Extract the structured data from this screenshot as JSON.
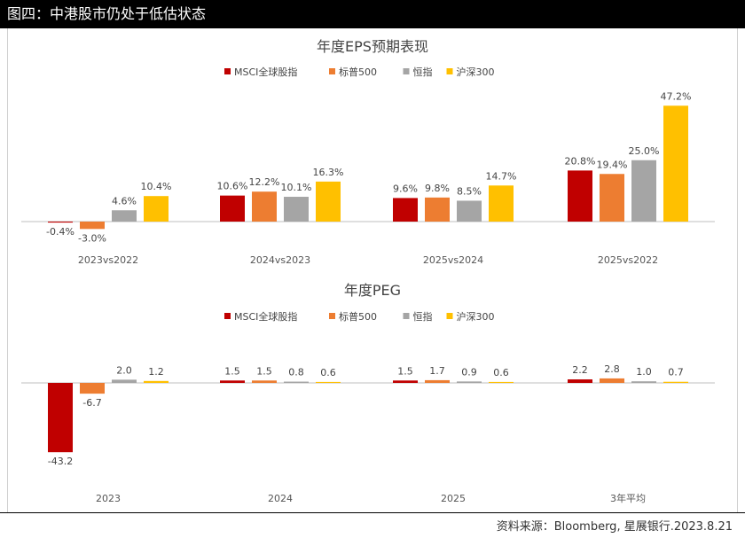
{
  "header": {
    "title": "图四：中港股市仍处于低估状态"
  },
  "source": "资料来源：Bloomberg, 星展银行.2023.8.21",
  "colors": {
    "MSCI全球股指": "#c00000",
    "标普500": "#ed7d31",
    "恒指": "#a5a5a5",
    "沪深300": "#ffc000"
  },
  "chart_data": [
    {
      "type": "bar",
      "title": "年度EPS预期表现",
      "categories": [
        "2023vs2022",
        "2024vs2023",
        "2025vs2024",
        "2025vs2022"
      ],
      "unit": "%",
      "legend_position": "top",
      "series": [
        {
          "name": "MSCI全球股指",
          "color": "#c00000",
          "values": [
            -0.4,
            10.6,
            9.6,
            20.8
          ],
          "labels": [
            "-0.4%",
            "10.6%",
            "9.6%",
            "20.8%"
          ]
        },
        {
          "name": "标普500",
          "color": "#ed7d31",
          "values": [
            -3.0,
            12.2,
            9.8,
            19.4
          ],
          "labels": [
            "-3.0%",
            "12.2%",
            "9.8%",
            "19.4%"
          ]
        },
        {
          "name": "恒指",
          "color": "#a5a5a5",
          "values": [
            4.6,
            10.1,
            8.5,
            25.0
          ],
          "labels": [
            "4.6%",
            "10.1%",
            "8.5%",
            "25.0%"
          ]
        },
        {
          "name": "沪深300",
          "color": "#ffc000",
          "values": [
            10.4,
            16.3,
            14.7,
            47.2
          ],
          "labels": [
            "10.4%",
            "16.3%",
            "14.7%",
            "47.2%"
          ]
        }
      ]
    },
    {
      "type": "bar",
      "title": "年度PEG",
      "categories": [
        "2023",
        "2024",
        "2025",
        "3年平均"
      ],
      "legend_position": "top",
      "series": [
        {
          "name": "MSCI全球股指",
          "color": "#c00000",
          "values": [
            -43.2,
            1.5,
            1.5,
            2.2
          ],
          "labels": [
            "-43.2",
            "1.5",
            "1.5",
            "2.2"
          ]
        },
        {
          "name": "标普500",
          "color": "#ed7d31",
          "values": [
            -6.7,
            1.5,
            1.7,
            2.8
          ],
          "labels": [
            "-6.7",
            "1.5",
            "1.7",
            "2.8"
          ]
        },
        {
          "name": "恒指",
          "color": "#a5a5a5",
          "values": [
            2.0,
            0.8,
            0.9,
            1.0
          ],
          "labels": [
            "2.0",
            "0.8",
            "0.9",
            "1.0"
          ]
        },
        {
          "name": "沪深300",
          "color": "#ffc000",
          "values": [
            1.2,
            0.6,
            0.6,
            0.7
          ],
          "labels": [
            "1.2",
            "0.6",
            "0.6",
            "0.7"
          ]
        }
      ]
    }
  ]
}
